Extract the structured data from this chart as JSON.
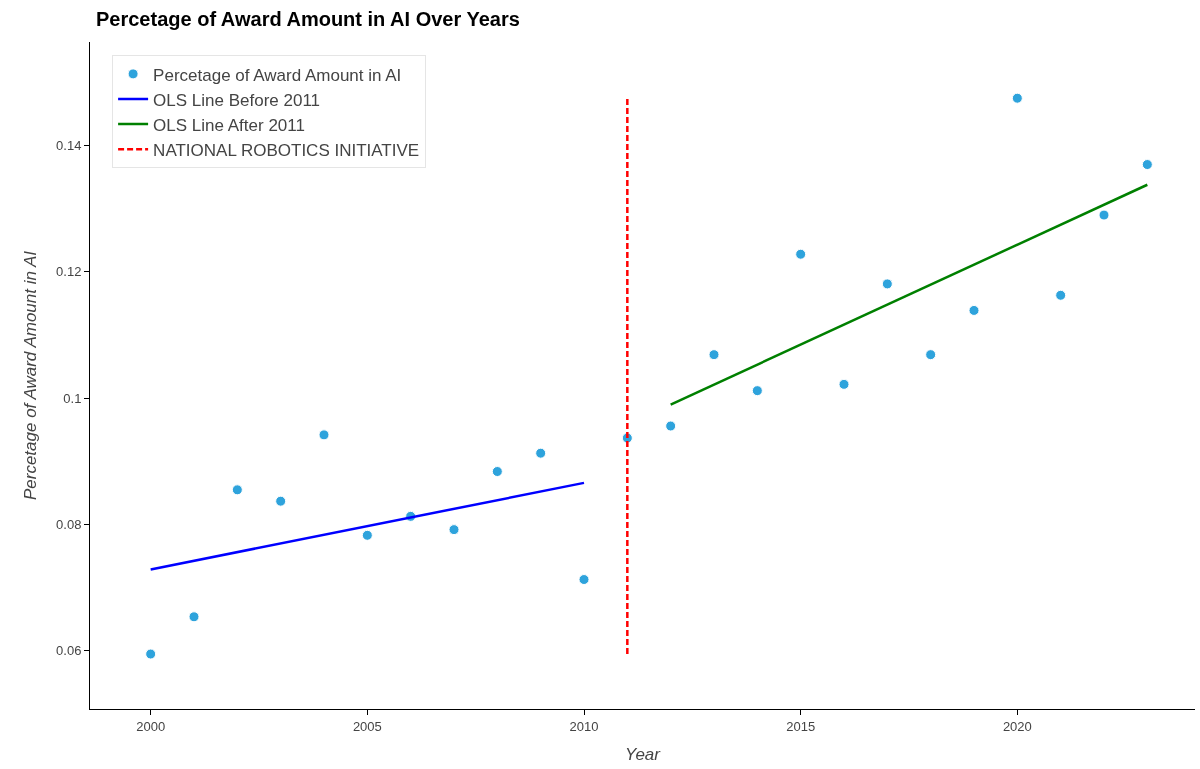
{
  "chart_data": {
    "type": "scatter",
    "title": "Percetage of Award Amount in AI Over Years",
    "xlabel": "Year",
    "ylabel": "Percetage of Award Amount in AI",
    "xlim": [
      1998.6,
      2024.1
    ],
    "xticks": [
      2000,
      2005,
      2010,
      2015,
      2020
    ],
    "ylim": [
      0.0508,
      0.1564
    ],
    "yticks": [
      0.06,
      0.08,
      {
        "value": 0.1,
        "label": "0.1"
      },
      0.12,
      0.14
    ],
    "legend": "top left",
    "series": [
      {
        "name": "Percetage of Award Amount in AI",
        "marker": "circle",
        "color": "#2ea3dc",
        "x": [
          2000,
          2001,
          2002,
          2003,
          2004,
          2005,
          2006,
          2007,
          2008,
          2009,
          2010,
          2011,
          2012,
          2013,
          2014,
          2015,
          2016,
          2017,
          2018,
          2019,
          2020,
          2021,
          2022,
          2023
        ],
        "values": [
          0.0595,
          0.0654,
          0.0855,
          0.0837,
          0.0942,
          0.0783,
          0.0813,
          0.0792,
          0.0884,
          0.0913,
          0.0713,
          0.0937,
          0.0956,
          0.1069,
          0.1012,
          0.1228,
          0.1022,
          0.1181,
          0.1069,
          0.1139,
          0.1475,
          0.1163,
          0.129,
          0.137
        ]
      },
      {
        "name": "OLS Line Before 2011",
        "type": "line",
        "line_style": "solid",
        "color": "#0000ff",
        "x": [
          2000,
          2010
        ],
        "values": [
          0.0729,
          0.0866
        ]
      },
      {
        "name": "OLS Line After 2011",
        "type": "line",
        "line_style": "solid",
        "color": "#008000",
        "x": [
          2012,
          2023
        ],
        "values": [
          0.099,
          0.1338
        ]
      },
      {
        "name": "NATIONAL ROBOTICS INITIATIVE",
        "type": "line",
        "line_style": "dashed",
        "color": "#ff0000",
        "x": [
          2011,
          2011
        ],
        "values": [
          0.0595,
          0.1475
        ]
      }
    ]
  }
}
